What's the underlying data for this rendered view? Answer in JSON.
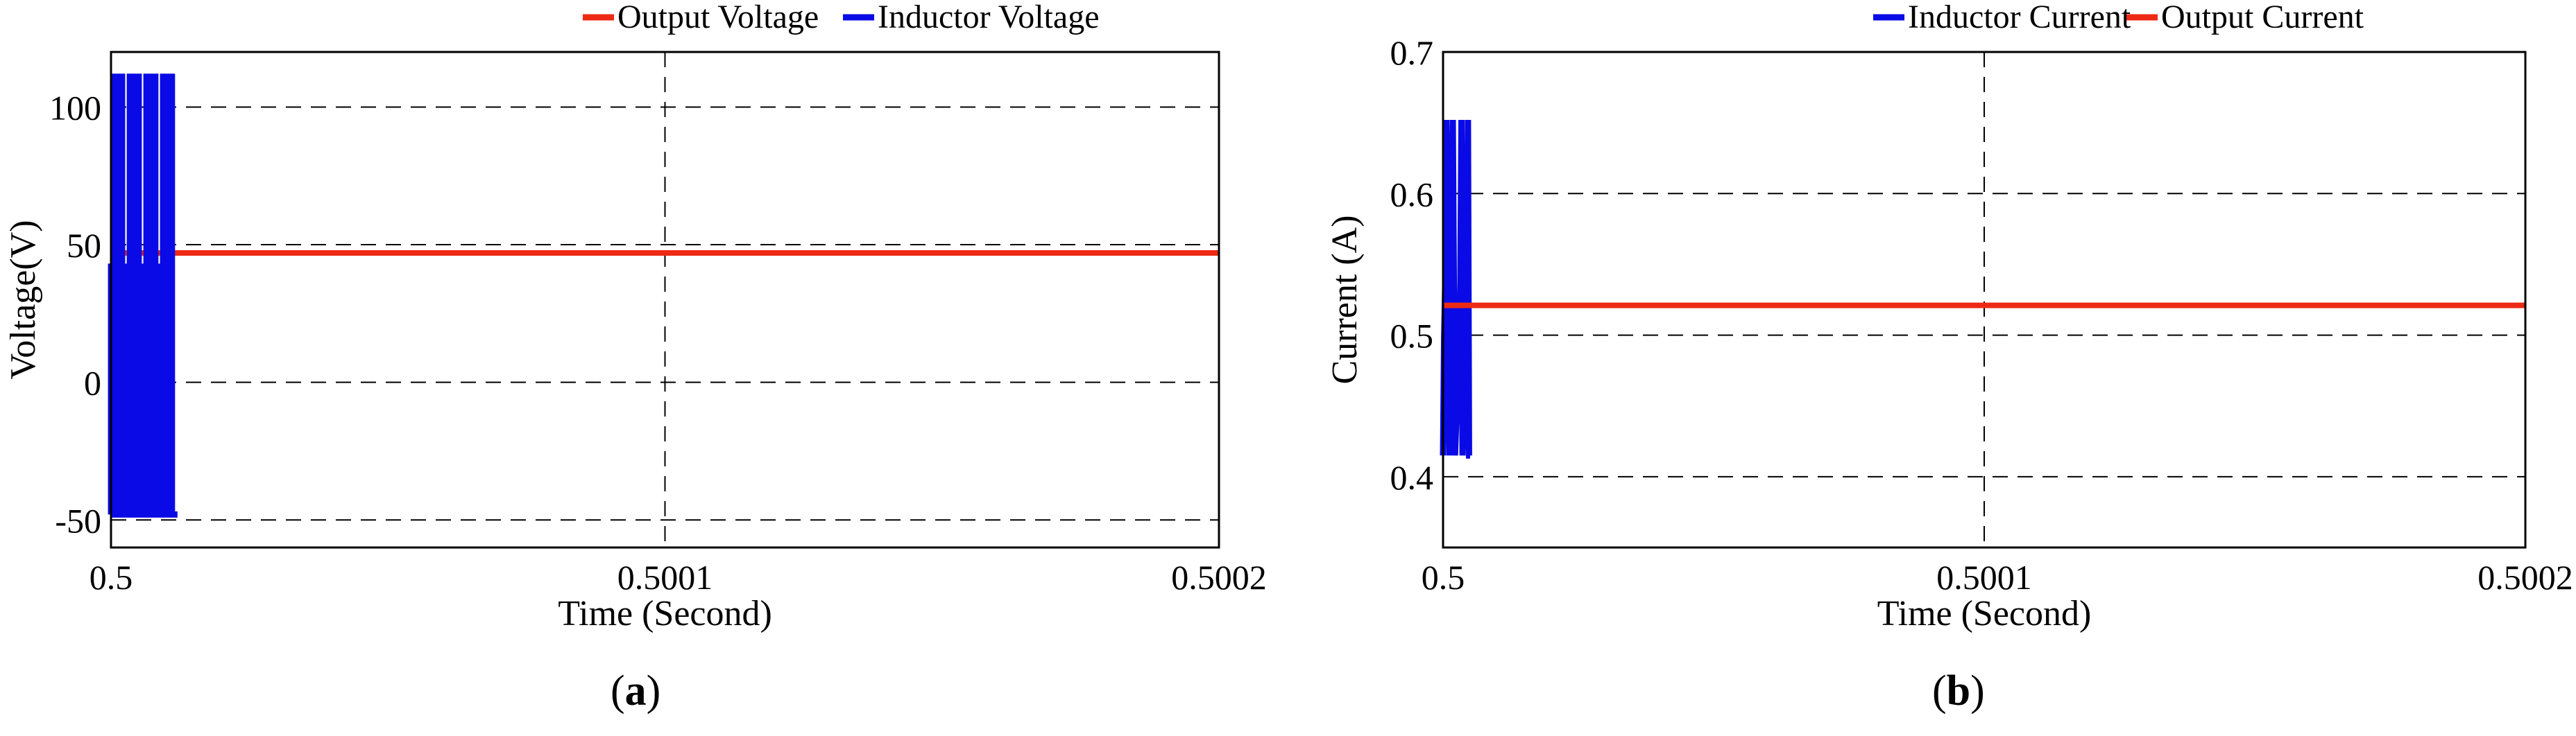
{
  "captions": [
    "a",
    "b"
  ],
  "colors": {
    "blue": "#0A0AE6",
    "red": "#EE2A14",
    "grid": "#000000",
    "axis": "#000000"
  },
  "chart_data": [
    {
      "type": "line",
      "panel": "a",
      "xlabel": "Time (Second)",
      "ylabel": "Voltage(V)",
      "xlim": [
        0.5,
        0.5002
      ],
      "ylim": [
        -60,
        120
      ],
      "x_ticks": [
        0.5,
        0.5001,
        0.5002
      ],
      "x_tick_labels": [
        "0.5",
        "0.5001",
        "0.5002"
      ],
      "y_ticks": [
        -50,
        0,
        50,
        100
      ],
      "y_tick_labels": [
        "-50",
        "0",
        "50",
        "100"
      ],
      "grid": true,
      "legend_position": "top-right",
      "series": [
        {
          "name": "Output Voltage",
          "color": "#EE2A14",
          "x": [
            0.5,
            0.5002
          ],
          "y": [
            47,
            47
          ]
        },
        {
          "name": "Inductor Voltage",
          "color": "#0A0AE6",
          "x": [
            0.5,
            0.50000001,
            0.50000001,
            0.5000002,
            0.5000002,
            0.5000004,
            0.5000004,
            0.5000005,
            0.5000005,
            0.5000006,
            0.5000006,
            0.5000012,
            0.5000012,
            0.5000014,
            0.5000014,
            0.5000016,
            0.5000016,
            0.500002,
            0.500002,
            0.5000022,
            0.5000022,
            0.500003,
            0.500003,
            0.5000032,
            0.5000032,
            0.5000034,
            0.5000034,
            0.50000355,
            0.50000355,
            0.5000036,
            0.5000036,
            0.5000042,
            0.5000042,
            0.5000044,
            0.5000044,
            0.5000046,
            0.5000046,
            0.500005,
            0.500005,
            0.5000052,
            0.5000052,
            0.500006,
            0.500006,
            0.5000062,
            0.5000062,
            0.5000064,
            0.5000064,
            0.50000655,
            0.50000655,
            0.5000066,
            0.5000066,
            0.5000072,
            0.5000072,
            0.5000074,
            0.5000074,
            0.5000076,
            0.5000076,
            0.500008,
            0.500008,
            0.5000082,
            0.5000082,
            0.500009,
            0.500009,
            0.5000092,
            0.5000092,
            0.5000094,
            0.5000094,
            0.50000955,
            0.50000955,
            0.5000096,
            0.5000096,
            0.5000102,
            0.5000102,
            0.5000104,
            0.5000104,
            0.5000106,
            0.5000106,
            0.500011,
            0.500011,
            0.5000112,
            0.5000112,
            0.500012
          ],
          "y": [
            -48,
            -48,
            42,
            42,
            22,
            22,
            111,
            111,
            -48,
            -48,
            -48,
            -48,
            42,
            42,
            22,
            22,
            111,
            111,
            -48,
            -48,
            -48,
            -48,
            42,
            42,
            22,
            22,
            111,
            111,
            -48,
            -48,
            -48,
            -48,
            42,
            42,
            22,
            22,
            111,
            111,
            -48,
            -48,
            -48,
            -48,
            42,
            42,
            22,
            22,
            111,
            111,
            -48,
            -48,
            -48,
            -48,
            42,
            42,
            22,
            22,
            111,
            111,
            -48,
            -48,
            -48,
            -48,
            42,
            42,
            22,
            22,
            111,
            111,
            -48,
            -48,
            -48,
            -48,
            42,
            42,
            22,
            22,
            111,
            111,
            -48,
            -48,
            -48,
            -48
          ]
        }
      ]
    },
    {
      "type": "line",
      "panel": "b",
      "xlabel": "Time (Second)",
      "ylabel": "Current (A)",
      "xlim": [
        0.5,
        0.5002
      ],
      "ylim": [
        0.35,
        0.7
      ],
      "x_ticks": [
        0.5,
        0.5001,
        0.5002
      ],
      "x_tick_labels": [
        "0.5",
        "0.5001",
        "0.5002"
      ],
      "y_ticks": [
        0.4,
        0.5,
        0.6,
        0.7
      ],
      "y_tick_labels": [
        "0.4",
        "0.5",
        "0.6",
        "0.7"
      ],
      "grid": true,
      "legend_position": "top-right",
      "series": [
        {
          "name": "Inductor Current",
          "color": "#0A0AE6",
          "x": [
            0.5,
            0.5000002,
            0.5000004,
            0.5000006,
            0.5000012,
            0.5000014,
            0.5000016,
            0.5000018,
            0.5000022,
            0.500003,
            0.5000032,
            0.5000034,
            0.5000036,
            0.5000042,
            0.5000044,
            0.5000046,
            0.5000048,
            0.500005
          ],
          "y": [
            0.415,
            0.497,
            0.537,
            0.652,
            0.415,
            0.497,
            0.537,
            0.652,
            0.415,
            0.497,
            0.537,
            0.652,
            0.415,
            0.497,
            0.537,
            0.652,
            0.415,
            0.415
          ]
        },
        {
          "name": "Output Current",
          "color": "#EE2A14",
          "x": [
            0.5,
            0.5002
          ],
          "y": [
            0.521,
            0.521
          ]
        }
      ]
    }
  ]
}
